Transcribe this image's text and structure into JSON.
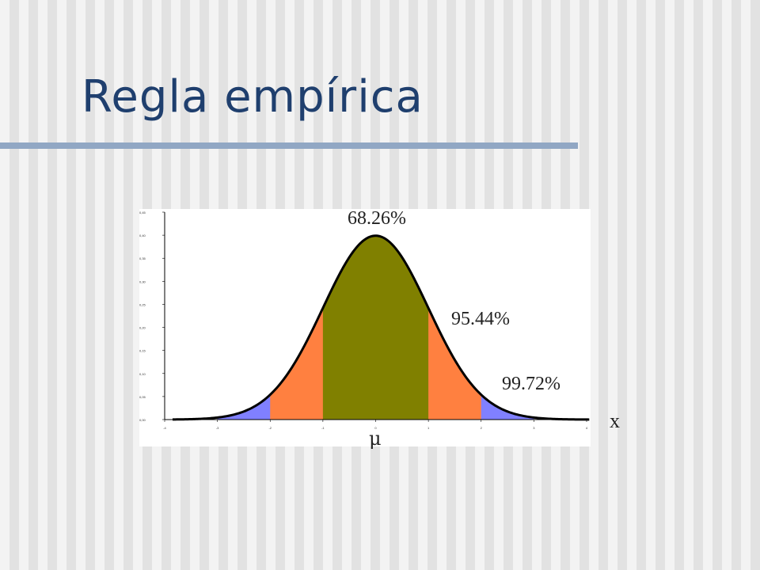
{
  "slide": {
    "title": "Regla empírica"
  },
  "diagram": {
    "curve": "normal-distribution",
    "bands": [
      {
        "name": "within-1-sd",
        "percent_label": "68.26%",
        "sd_from": -1,
        "sd_to": 1,
        "color": "#808000"
      },
      {
        "name": "within-2-sd",
        "percent_label": "95.44%",
        "sd_from": -2,
        "sd_to": 2,
        "color": "#ff8040"
      },
      {
        "name": "within-3-sd",
        "percent_label": "99.72%",
        "sd_from": -3,
        "sd_to": 3,
        "color": "#8080ff"
      }
    ],
    "x_axis_label": "x",
    "mean_label": "μ",
    "x_range": [
      -4,
      4
    ],
    "x_ticks": [
      -4,
      -3,
      -2,
      -1,
      0,
      1,
      2,
      3,
      4
    ],
    "y_range": [
      0,
      0.45
    ],
    "y_ticks": [
      "0,00",
      "0,05",
      "0,10",
      "0,15",
      "0,20",
      "0,25",
      "0,30",
      "0,35",
      "0,40",
      "0,45"
    ]
  }
}
